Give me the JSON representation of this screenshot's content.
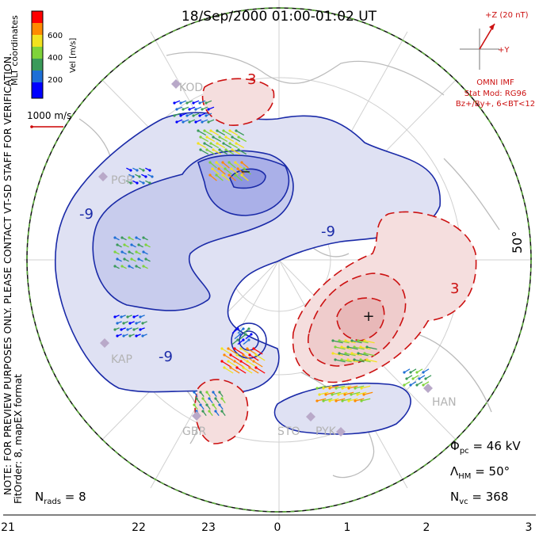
{
  "title": "18/Sep/2000 01:00-01:02 UT",
  "coord_label": "MLT coordinates",
  "velocity_scale": {
    "unit_label": "Vel [m/s]",
    "ticks": [
      "600",
      "400",
      "200"
    ],
    "colors": [
      "#0000ff",
      "#1e6fd6",
      "#3a9a5a",
      "#7fd33a",
      "#f2e21f",
      "#ff8a00",
      "#ff0000"
    ]
  },
  "ref_vector_label": "1000 m/s",
  "imf": {
    "z_label": "+Z (20 nT)",
    "y_label": "+Y",
    "source": "OMNI IMF",
    "model_line1": "Stat Mod: RG96",
    "model_line2": "Bz+/By+, 6<BT<12"
  },
  "disclaimer_line1": "NOTE: FOR PREVIEW PURPOSES ONLY. PLEASE CONTACT VT-SD STAFF FOR VERIFICATION.",
  "disclaimer_line2": "FitOrder: 8, mapEX format",
  "lat_label": "50°",
  "stats": {
    "phi_pc_name": "Φ",
    "phi_pc_sub": "pc",
    "phi_pc_value": " = 46 kV",
    "lambda_name": "Λ",
    "lambda_sub": "HM",
    "lambda_value": " = 50°",
    "nvc_name": "N",
    "nvc_sub": "vc",
    "nvc_value": " = 368",
    "nrads_name": "N",
    "nrads_sub": "rads",
    "nrads_value": " = 8"
  },
  "mlt_ticks": [
    "21",
    "22",
    "23",
    "0",
    "1",
    "2",
    "3"
  ],
  "contour_labels": {
    "neg": [
      "-9",
      "-9",
      "-9"
    ],
    "pos": [
      "3",
      "3"
    ]
  },
  "extrema": {
    "min": "−",
    "max": "+"
  },
  "radar_labels": [
    "KOD",
    "PGR",
    "KAP",
    "GBR",
    "STO",
    "PYK",
    "HAN"
  ],
  "colors": {
    "negative_contour": "#1a2aa8",
    "positive_contour": "#cc1111",
    "negative_fill": "#dfe1f3",
    "negative_fill_dark": "#aab0e8",
    "positive_fill": "#f5dede",
    "positive_fill_dark": "#ecc2c2",
    "land": "#bbbbbb",
    "boundary_dash": "#5ba83a"
  }
}
